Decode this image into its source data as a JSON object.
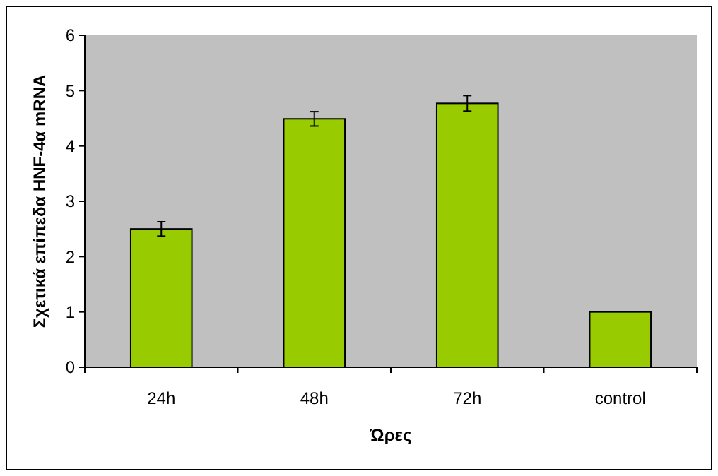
{
  "chart_data": {
    "type": "bar",
    "xlabel": "Ώρες",
    "ylabel": "Σχετικά επίπεδα HNF-4α mRNA",
    "categories": [
      "24h",
      "48h",
      "72h",
      "control"
    ],
    "values": [
      2.5,
      4.49,
      4.77,
      1.0
    ],
    "errors": [
      0.13,
      0.13,
      0.14,
      null
    ],
    "color": "#99cc00",
    "ylim": [
      0,
      6
    ],
    "yticks": [
      0,
      1,
      2,
      3,
      4,
      5,
      6
    ],
    "grid": false
  }
}
